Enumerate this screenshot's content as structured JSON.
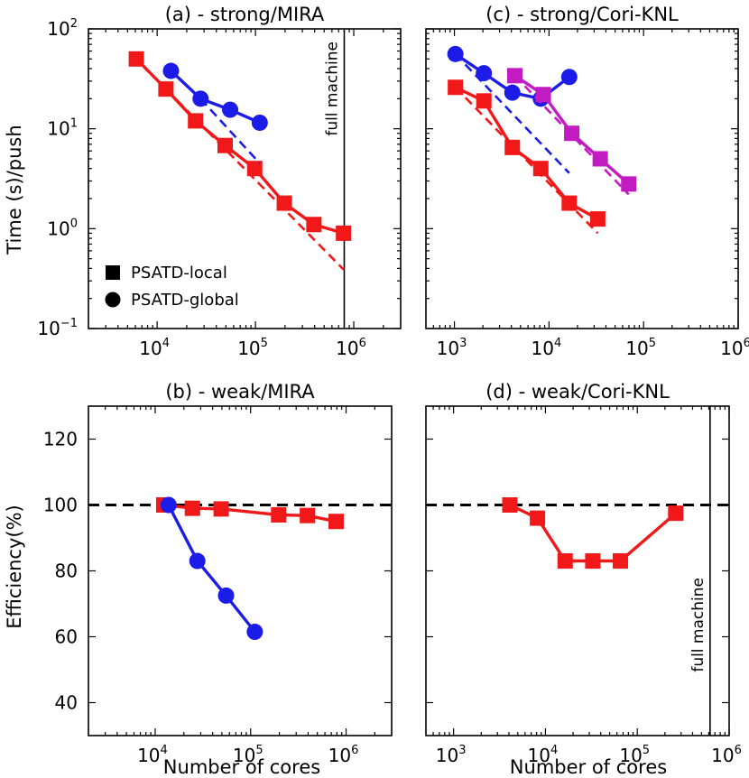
{
  "figure": {
    "xlabel_bottom_left": "Number of cores",
    "xlabel_bottom_right": "Number of cores",
    "ylabel_top": "Time (s)/push",
    "ylabel_bottom": "Efficiency(%)"
  },
  "legend": {
    "items": [
      {
        "label": "PSATD-local",
        "marker": "square"
      },
      {
        "label": "PSATD-global",
        "marker": "circle"
      }
    ]
  },
  "colors": {
    "red": "#f01818",
    "blue": "#1c1ce8",
    "magenta": "#c21bc2",
    "black": "#000000"
  },
  "chart_data": [
    {
      "id": "a",
      "title": "(a) - strong/MIRA",
      "type": "line",
      "xscale": "log",
      "yscale": "log",
      "xlim": [
        2000,
        3000000
      ],
      "ylim": [
        0.1,
        100
      ],
      "xticks": [
        10000,
        100000,
        1000000
      ],
      "yticks": [
        0.1,
        1,
        10,
        100
      ],
      "vline": {
        "x": 800000,
        "label": "full machine"
      },
      "series": [
        {
          "color": "red",
          "marker": "square",
          "style": "solid",
          "x": [
            6144,
            12288,
            24576,
            49152,
            98304,
            196608,
            393216,
            786432
          ],
          "y": [
            50,
            25,
            12,
            6.8,
            4.0,
            1.8,
            1.1,
            0.9
          ]
        },
        {
          "color": "red",
          "style": "dashed",
          "x": [
            6144,
            786432
          ],
          "y": [
            50,
            0.39
          ]
        },
        {
          "color": "blue",
          "marker": "circle",
          "style": "solid",
          "x": [
            13824,
            27648,
            55296,
            110592
          ],
          "y": [
            38,
            20,
            15.5,
            11.5
          ]
        },
        {
          "color": "blue",
          "style": "dashed",
          "x": [
            27648,
            110592
          ],
          "y": [
            20,
            4.5
          ]
        }
      ]
    },
    {
      "id": "c",
      "title": "(c) - strong/Cori-KNL",
      "type": "line",
      "xscale": "log",
      "yscale": "log",
      "xlim": [
        500,
        1000000
      ],
      "ylim": [
        0.1,
        100
      ],
      "xticks": [
        1000,
        10000,
        100000,
        1000000
      ],
      "yticks": [
        0.1,
        1,
        10,
        100
      ],
      "series": [
        {
          "color": "red",
          "marker": "square",
          "style": "solid",
          "x": [
            1024,
            2048,
            4096,
            8192,
            16384,
            32768
          ],
          "y": [
            26,
            19,
            6.5,
            4.0,
            1.8,
            1.25
          ]
        },
        {
          "color": "red",
          "style": "dashed",
          "x": [
            1024,
            32768
          ],
          "y": [
            26,
            0.9
          ]
        },
        {
          "color": "blue",
          "marker": "circle",
          "style": "solid",
          "x": [
            1024,
            2048,
            4096,
            8192,
            16384
          ],
          "y": [
            56,
            36,
            23,
            20,
            33
          ]
        },
        {
          "color": "blue",
          "style": "dashed",
          "x": [
            1024,
            16384
          ],
          "y": [
            56,
            3.6
          ]
        },
        {
          "color": "magenta",
          "marker": "square",
          "style": "solid",
          "x": [
            4352,
            8704,
            17408,
            34816,
            69632
          ],
          "y": [
            34,
            22,
            9,
            5,
            2.8
          ]
        },
        {
          "color": "magenta",
          "style": "dashed",
          "x": [
            4352,
            69632
          ],
          "y": [
            34,
            2.2
          ]
        }
      ]
    },
    {
      "id": "b",
      "title": "(b) - weak/MIRA",
      "type": "line",
      "xscale": "log",
      "yscale": "linear",
      "xlim": [
        2000,
        3000000
      ],
      "ylim": [
        30,
        130
      ],
      "xticks": [
        10000,
        100000,
        1000000
      ],
      "yticks": [
        40,
        60,
        80,
        100,
        120
      ],
      "hline": {
        "y": 100,
        "style": "dashed",
        "color": "black"
      },
      "series": [
        {
          "color": "red",
          "marker": "square",
          "style": "solid",
          "x": [
            12288,
            24576,
            49152,
            196608,
            393216,
            786432
          ],
          "y": [
            100,
            99,
            98.8,
            97,
            96.8,
            95
          ]
        },
        {
          "color": "blue",
          "marker": "circle",
          "style": "solid",
          "x": [
            13824,
            27648,
            55296,
            110592
          ],
          "y": [
            100,
            83,
            72.5,
            61.5
          ]
        }
      ]
    },
    {
      "id": "d",
      "title": "(d) - weak/Cori-KNL",
      "type": "line",
      "xscale": "log",
      "yscale": "linear",
      "xlim": [
        500,
        1000000
      ],
      "ylim": [
        30,
        130
      ],
      "xticks": [
        1000,
        10000,
        100000,
        1000000
      ],
      "yticks": [
        40,
        60,
        80,
        100,
        120
      ],
      "hline": {
        "y": 100,
        "style": "dashed",
        "color": "black"
      },
      "vline": {
        "x": 620000,
        "label": "full machine"
      },
      "series": [
        {
          "color": "red",
          "marker": "square",
          "style": "solid",
          "x": [
            4096,
            8192,
            16384,
            32768,
            65536,
            262144
          ],
          "y": [
            100,
            96,
            83,
            83,
            83,
            97.5
          ]
        }
      ]
    }
  ]
}
